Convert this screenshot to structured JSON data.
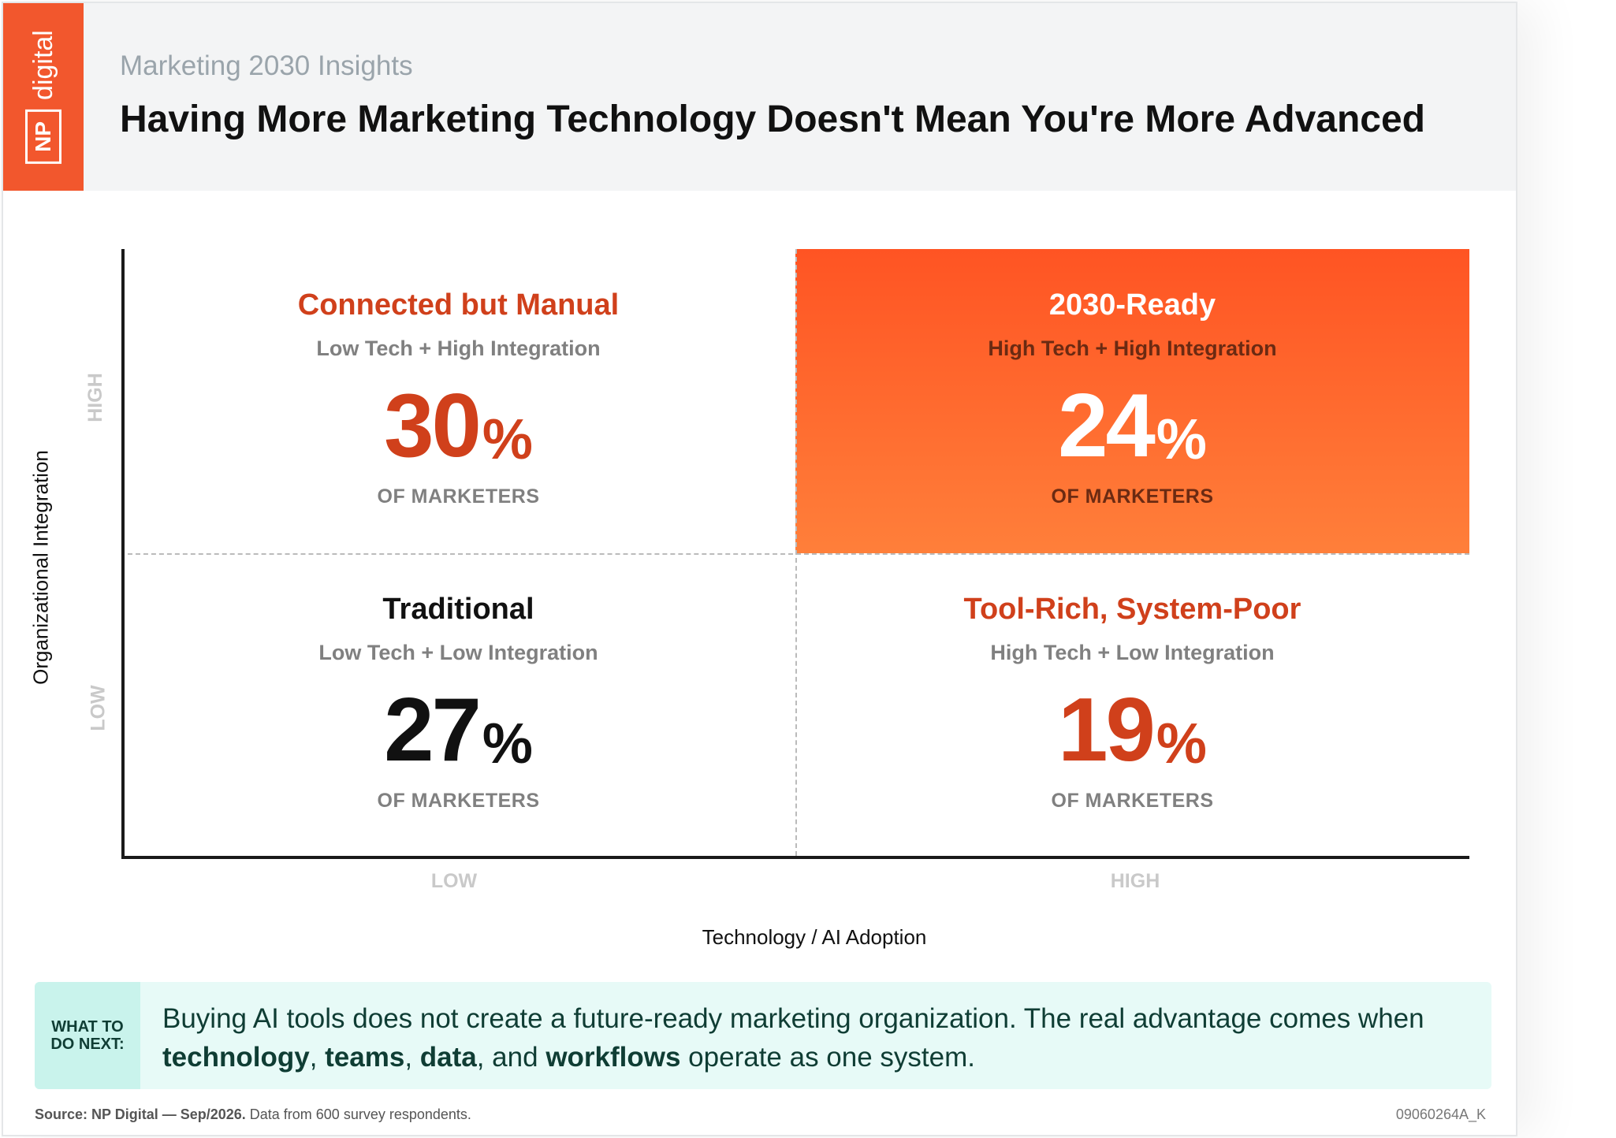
{
  "header": {
    "logo_np": "NP",
    "logo_digital": "digital",
    "subtitle": "Marketing 2030 Insights",
    "title": "Having More Marketing Technology Doesn't Mean You're More Advanced"
  },
  "chart_data": {
    "type": "quadrant",
    "title": "Having More Marketing Technology Doesn't Mean You're More Advanced",
    "subtitle": "Marketing 2030 Insights",
    "xlabel": "Technology / AI Adoption",
    "ylabel": "Organizational Integration",
    "x_ticks": [
      "LOW",
      "HIGH"
    ],
    "y_ticks": [
      "LOW",
      "HIGH"
    ],
    "grid": "dashed quadrant dividers",
    "quadrants": [
      {
        "name": "Connected but Manual",
        "subtitle": "Low Tech + High Integration",
        "value": 30,
        "unit": "%",
        "caption": "OF MARKETERS",
        "x": "LOW",
        "y": "HIGH",
        "color": "#d0401b",
        "highlight": false
      },
      {
        "name": "2030-Ready",
        "subtitle": "High Tech + High Integration",
        "value": 24,
        "unit": "%",
        "caption": "OF MARKETERS",
        "x": "HIGH",
        "y": "HIGH",
        "color": "#ffffff",
        "highlight": true
      },
      {
        "name": "Traditional",
        "subtitle": "Low Tech + Low Integration",
        "value": 27,
        "unit": "%",
        "caption": "OF MARKETERS",
        "x": "LOW",
        "y": "LOW",
        "color": "#111111",
        "highlight": false
      },
      {
        "name": "Tool-Rich, System-Poor",
        "subtitle": "High Tech + Low Integration",
        "value": 19,
        "unit": "%",
        "caption": "OF MARKETERS",
        "x": "HIGH",
        "y": "LOW",
        "color": "#d0401b",
        "highlight": false
      }
    ]
  },
  "next": {
    "label_line1": "WHAT TO",
    "label_line2": "DO NEXT:",
    "text_a": "Buying AI tools does not create a future-ready marketing organization. The real advantage comes when ",
    "bold_1": "technology",
    "sep_1": ", ",
    "bold_2": "teams",
    "sep_2": ", ",
    "bold_3": "data",
    "sep_3": ", and ",
    "bold_4": "workflows",
    "text_b": " operate as one system."
  },
  "footer": {
    "source_bold": "Source: NP Digital — Sep/2026.",
    "source_rest": " Data from 600 survey respondents.",
    "code": "09060264A_K"
  },
  "colors": {
    "brand": "#f2572d",
    "accent_orange": "#d0401b",
    "highlight_start": "#ff5423",
    "highlight_end": "#ff7f3a",
    "next_bg": "#e7faf7"
  }
}
